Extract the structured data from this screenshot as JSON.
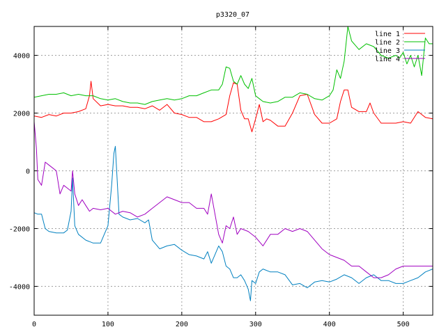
{
  "chart_data": {
    "type": "line",
    "title": "p3320_07",
    "xlabel": "",
    "ylabel": "",
    "xlim": [
      0,
      540
    ],
    "ylim": [
      -5000,
      5000
    ],
    "x_ticks": [
      0,
      100,
      200,
      300,
      400,
      500
    ],
    "y_ticks": [
      -4000,
      -2000,
      0,
      2000,
      4000
    ],
    "grid": true,
    "legend_position": "top-right",
    "series": [
      {
        "name": "line 1",
        "color": "#ff0000",
        "x": [
          0,
          10,
          20,
          30,
          40,
          50,
          60,
          70,
          75,
          77,
          80,
          90,
          100,
          110,
          120,
          130,
          140,
          150,
          160,
          170,
          180,
          190,
          200,
          210,
          220,
          230,
          240,
          250,
          260,
          265,
          270,
          275,
          280,
          285,
          290,
          295,
          300,
          305,
          310,
          315,
          320,
          330,
          340,
          350,
          360,
          370,
          380,
          390,
          400,
          410,
          415,
          420,
          425,
          430,
          440,
          450,
          455,
          460,
          470,
          480,
          490,
          500,
          510,
          520,
          530,
          540
        ],
        "values": [
          1900,
          1850,
          1950,
          1900,
          2000,
          2000,
          2050,
          2150,
          2600,
          3100,
          2500,
          2250,
          2300,
          2250,
          2250,
          2200,
          2200,
          2150,
          2250,
          2100,
          2300,
          2000,
          1950,
          1850,
          1850,
          1700,
          1700,
          1800,
          1950,
          2600,
          3050,
          3000,
          2100,
          1800,
          1800,
          1350,
          1800,
          2300,
          1700,
          1800,
          1750,
          1550,
          1550,
          2000,
          2600,
          2650,
          1950,
          1650,
          1650,
          1800,
          2400,
          2800,
          2800,
          2200,
          2050,
          2050,
          2350,
          2000,
          1650,
          1650,
          1650,
          1700,
          1650,
          2050,
          1850,
          1800
        ]
      },
      {
        "name": "line 2",
        "color": "#00c000",
        "x": [
          0,
          10,
          20,
          30,
          40,
          50,
          60,
          70,
          80,
          90,
          100,
          110,
          120,
          130,
          140,
          150,
          160,
          170,
          180,
          190,
          200,
          210,
          220,
          230,
          240,
          250,
          255,
          260,
          265,
          270,
          275,
          280,
          285,
          290,
          295,
          300,
          305,
          310,
          320,
          330,
          340,
          350,
          360,
          370,
          380,
          390,
          400,
          405,
          410,
          415,
          420,
          425,
          430,
          440,
          450,
          460,
          470,
          480,
          490,
          495,
          500,
          505,
          510,
          515,
          520,
          525,
          530,
          535,
          540
        ],
        "values": [
          2550,
          2600,
          2650,
          2650,
          2700,
          2600,
          2650,
          2600,
          2600,
          2500,
          2450,
          2500,
          2400,
          2350,
          2350,
          2300,
          2400,
          2450,
          2500,
          2450,
          2500,
          2600,
          2600,
          2700,
          2800,
          2800,
          3000,
          3600,
          3550,
          3100,
          3000,
          3300,
          3000,
          2850,
          3200,
          2600,
          2500,
          2400,
          2350,
          2400,
          2550,
          2550,
          2700,
          2650,
          2500,
          2450,
          2600,
          2800,
          3500,
          3200,
          3800,
          5000,
          4500,
          4200,
          4400,
          4300,
          4000,
          3900,
          4000,
          3900,
          4100,
          3700,
          4000,
          3600,
          4000,
          3300,
          4600,
          4400,
          4400
        ]
      },
      {
        "name": "line 3",
        "color": "#0080c0",
        "x": [
          0,
          5,
          10,
          15,
          20,
          30,
          40,
          45,
          50,
          52,
          55,
          60,
          70,
          80,
          90,
          95,
          100,
          105,
          108,
          110,
          115,
          120,
          130,
          140,
          150,
          155,
          160,
          170,
          180,
          190,
          200,
          210,
          220,
          230,
          235,
          240,
          245,
          250,
          255,
          260,
          265,
          270,
          275,
          280,
          285,
          290,
          293,
          295,
          300,
          305,
          310,
          320,
          330,
          340,
          350,
          360,
          370,
          380,
          390,
          400,
          410,
          420,
          430,
          440,
          450,
          460,
          470,
          480,
          490,
          500,
          510,
          520,
          530,
          540
        ],
        "values": [
          -1450,
          -1500,
          -1500,
          -2000,
          -2100,
          -2150,
          -2150,
          -2050,
          -1400,
          -250,
          -1900,
          -2200,
          -2400,
          -2500,
          -2500,
          -2200,
          -1900,
          -500,
          600,
          850,
          -1500,
          -1600,
          -1700,
          -1650,
          -1800,
          -1700,
          -2400,
          -2700,
          -2600,
          -2550,
          -2750,
          -2900,
          -2950,
          -3050,
          -2800,
          -3200,
          -2900,
          -2600,
          -2800,
          -3300,
          -3400,
          -3700,
          -3700,
          -3600,
          -3800,
          -4100,
          -4500,
          -3800,
          -3900,
          -3500,
          -3400,
          -3500,
          -3500,
          -3600,
          -3950,
          -3900,
          -4050,
          -3850,
          -3800,
          -3850,
          -3750,
          -3600,
          -3700,
          -3900,
          -3700,
          -3600,
          -3800,
          -3800,
          -3900,
          -3900,
          -3800,
          -3700,
          -3500,
          -3400
        ]
      },
      {
        "name": "line 4",
        "color": "#a000c0",
        "x": [
          0,
          3,
          5,
          10,
          15,
          20,
          25,
          30,
          35,
          40,
          45,
          50,
          52,
          55,
          60,
          65,
          70,
          75,
          80,
          90,
          100,
          110,
          120,
          130,
          140,
          150,
          160,
          170,
          180,
          190,
          200,
          210,
          220,
          230,
          235,
          240,
          250,
          255,
          260,
          265,
          270,
          275,
          280,
          290,
          300,
          310,
          320,
          330,
          340,
          350,
          360,
          370,
          380,
          390,
          400,
          410,
          420,
          430,
          440,
          450,
          460,
          470,
          480,
          490,
          500,
          510,
          520,
          530,
          540
        ],
        "values": [
          1700,
          800,
          -300,
          -500,
          300,
          200,
          100,
          0,
          -800,
          -500,
          -600,
          -700,
          0,
          -800,
          -1200,
          -1000,
          -1200,
          -1400,
          -1300,
          -1350,
          -1300,
          -1500,
          -1400,
          -1450,
          -1600,
          -1500,
          -1300,
          -1100,
          -900,
          -1000,
          -1100,
          -1100,
          -1300,
          -1300,
          -1500,
          -800,
          -2200,
          -2500,
          -1900,
          -2000,
          -1600,
          -2200,
          -2000,
          -2100,
          -2300,
          -2600,
          -2200,
          -2200,
          -2000,
          -2100,
          -2000,
          -2100,
          -2400,
          -2700,
          -2900,
          -3000,
          -3100,
          -3300,
          -3300,
          -3500,
          -3700,
          -3700,
          -3600,
          -3400,
          -3300,
          -3300,
          -3300,
          -3300,
          -3300
        ]
      }
    ]
  }
}
